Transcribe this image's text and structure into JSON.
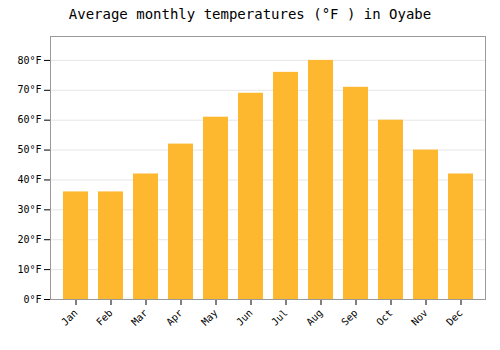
{
  "chart_data": {
    "type": "bar",
    "title": "Average monthly temperatures (°F ) in Oyabe",
    "categories": [
      "Jan",
      "Feb",
      "Mar",
      "Apr",
      "May",
      "Jun",
      "Jul",
      "Aug",
      "Sep",
      "Oct",
      "Nov",
      "Dec"
    ],
    "values": [
      36,
      36,
      42,
      52,
      61,
      69,
      76,
      80,
      71,
      60,
      50,
      42
    ],
    "color": "#FDB830",
    "ylim": [
      0,
      88
    ],
    "yticks": [
      {
        "value": 0,
        "label": "0°F"
      },
      {
        "value": 10,
        "label": "10°F"
      },
      {
        "value": 20,
        "label": "20°F"
      },
      {
        "value": 30,
        "label": "30°F"
      },
      {
        "value": 40,
        "label": "40°F"
      },
      {
        "value": 50,
        "label": "50°F"
      },
      {
        "value": 60,
        "label": "60°F"
      },
      {
        "value": 70,
        "label": "70°F"
      },
      {
        "value": 80,
        "label": "80°F"
      }
    ],
    "grid": true
  }
}
